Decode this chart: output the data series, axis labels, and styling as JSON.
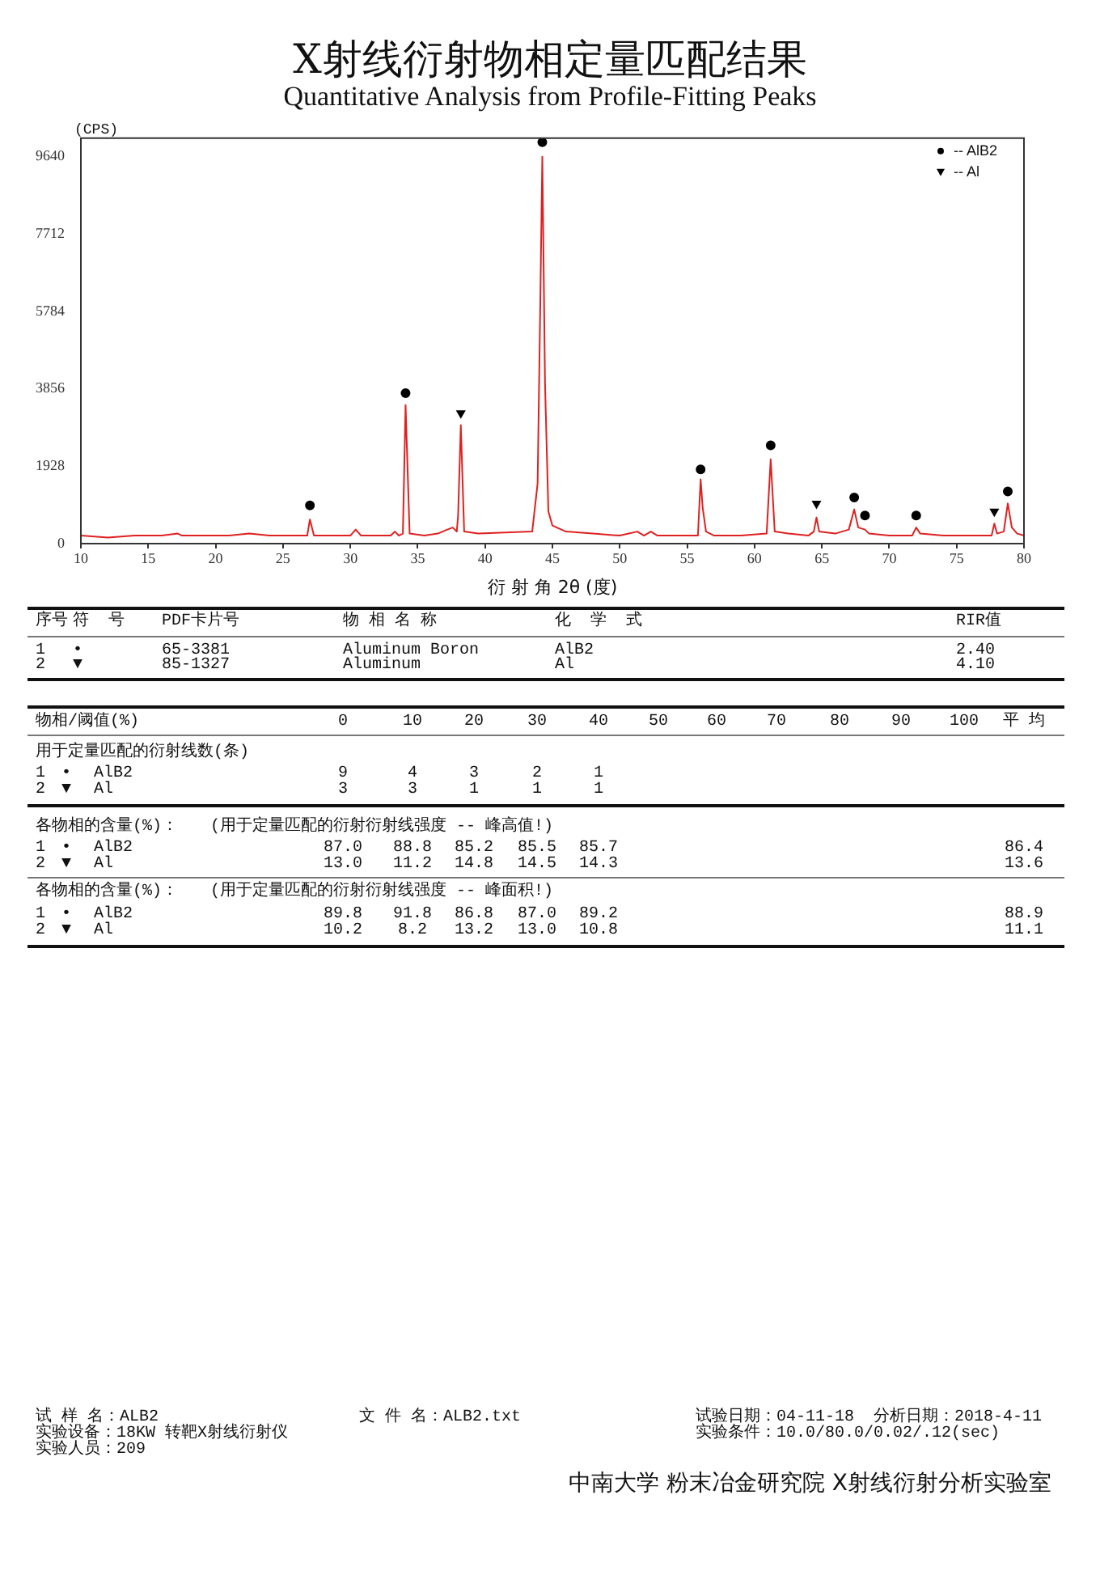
{
  "chart_data": {
    "type": "line",
    "title": "X射线衍射物相定量匹配结果",
    "subtitle": "Quantitative Analysis from Profile-Fitting Peaks",
    "xlabel": "衍 射 角 2θ (度)",
    "ylabel": "(CPS)",
    "xlim": [
      10,
      80
    ],
    "xticks": [
      10,
      15,
      20,
      25,
      30,
      35,
      40,
      45,
      50,
      55,
      60,
      65,
      70,
      75,
      80
    ],
    "ylim": [
      0,
      10100
    ],
    "yticks": [
      0,
      1928,
      3856,
      5784,
      7712,
      9640
    ],
    "grid": false,
    "legend": "top right",
    "series": [
      {
        "color": "#e02020",
        "marker": "none",
        "x": [
          10,
          12,
          14,
          16,
          17.2,
          17.5,
          19,
          21,
          22.5,
          24,
          25.5,
          26.8,
          27.0,
          27.3,
          28.5,
          30.0,
          30.4,
          30.8,
          32,
          33.0,
          33.3,
          33.6,
          33.9,
          34.1,
          34.4,
          35.5,
          36.5,
          37.2,
          37.6,
          37.9,
          38.0,
          38.2,
          38.45,
          39.5,
          43.5,
          43.9,
          44.1,
          44.25,
          44.45,
          44.7,
          45,
          46,
          48,
          50,
          51.3,
          51.8,
          52.3,
          52.8,
          54,
          55.8,
          56.0,
          56.15,
          56.4,
          57,
          59,
          60.9,
          61.2,
          61.5,
          62.5,
          64,
          64.4,
          64.6,
          64.8,
          66,
          67.0,
          67.4,
          67.7,
          68.2,
          68.5,
          70,
          71.7,
          72.0,
          72.3,
          74,
          76,
          77.6,
          77.8,
          78.0,
          78.5,
          78.8,
          79.1,
          79.5,
          80
        ],
        "values": [
          200,
          150,
          200,
          200,
          250,
          200,
          200,
          200,
          250,
          200,
          200,
          200,
          600,
          200,
          200,
          200,
          350,
          200,
          200,
          200,
          300,
          200,
          250,
          3450,
          250,
          200,
          250,
          350,
          400,
          300,
          700,
          2950,
          300,
          250,
          300,
          1500,
          6000,
          9640,
          4000,
          800,
          450,
          300,
          250,
          200,
          300,
          200,
          300,
          200,
          200,
          200,
          1600,
          900,
          300,
          200,
          200,
          250,
          2100,
          300,
          250,
          200,
          300,
          650,
          300,
          250,
          350,
          850,
          400,
          350,
          250,
          200,
          200,
          400,
          250,
          200,
          200,
          200,
          500,
          250,
          300,
          1000,
          400,
          250,
          200
        ]
      },
      {
        "type": "scatter",
        "name": "-- AlB2",
        "color": "#000000",
        "marker": "circle",
        "x": [
          27.0,
          34.1,
          44.25,
          56.0,
          61.2,
          67.4,
          68.2,
          72.0,
          78.8
        ],
        "values": [
          950,
          3750,
          10000,
          1850,
          2450,
          1150,
          700,
          700,
          1300
        ]
      },
      {
        "type": "scatter",
        "name": "-- Al",
        "color": "#000000",
        "marker": "triangle",
        "x": [
          38.2,
          64.6,
          77.8
        ],
        "values": [
          3250,
          1000,
          800
        ]
      }
    ],
    "annotations": [
      "序号\t符  号\tPDF卡片号\t物 相 名 称\t化  学  式\tRIR值",
      "1\t•\t65-3381\tAluminum Boron\tAlB2\t2.40",
      "2\t▼\t85-1327\tAluminum\tAl\t4.10",
      "物相/阈值(%)\t\t\t0\t10\t20\t30\t40\t50\t60\t70\t80\t90\t100\t平 均",
      "用于定量匹配的衍射线数(条)",
      "1\t•\tAlB2\t9\t4\t3\t2\t1",
      "2\t▼\tAl\t3\t3\t1\t1\t1",
      "各物相的含量(%)：\t(用于定量匹配的衍射衍射线强度 -- 峰高值!)",
      "1\t•\tAlB2\t87.0\t88.8\t85.2\t85.5\t85.7\t\t\t\t\t\t\t86.4",
      "2\t▼\tAl\t13.0\t11.2\t14.8\t14.5\t14.3\t\t\t\t\t\t\t13.6",
      "各物相的含量(%)：\t(用于定量匹配的衍射衍射线强度 -- 峰面积!)",
      "1\t•\tAlB2\t89.8\t91.8\t86.8\t87.0\t89.2\t\t\t\t\t\t\t88.9",
      "2\t▼\tAl\t10.2\t8.2\t13.2\t13.0\t10.8\t\t\t\t\t\t\t11.1",
      "试 样 名：ALB2",
      "文 件 名：ALB2.txt",
      "试验日期：04-11-18  分析日期：2018-4-11",
      "实验设备：18KW 转靶X射线衍射仪",
      "实验条件：10.0/80.0/0.02/.12(sec)",
      "实验人员：209",
      "中南大学 粉末冶金研究院 X射线衍射分析实验室"
    ]
  }
}
